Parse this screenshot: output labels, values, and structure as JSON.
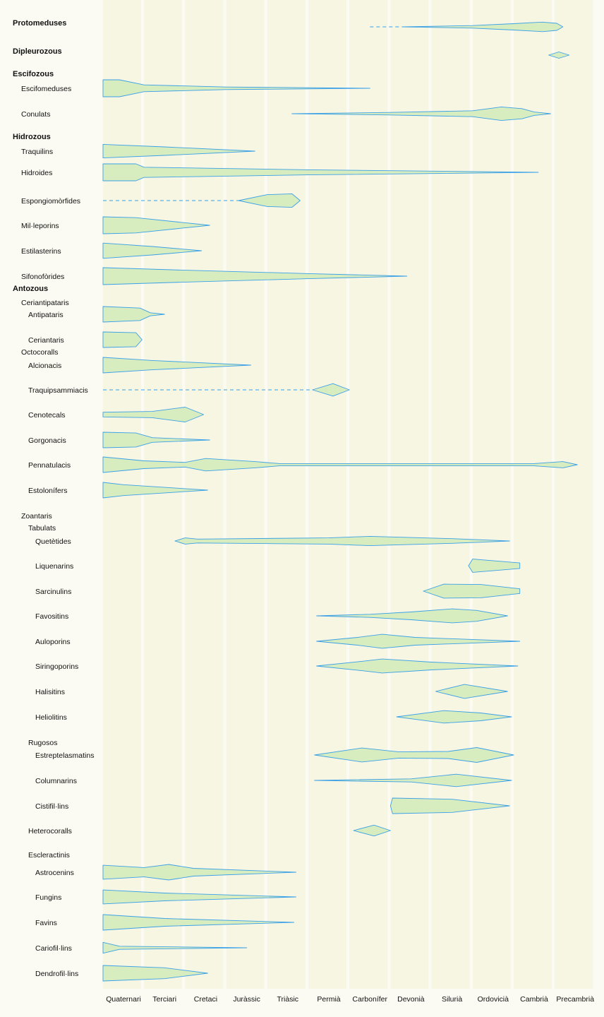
{
  "chart_data": {
    "type": "range-spindle",
    "periods": [
      "Quaternari",
      "Terciari",
      "Cretaci",
      "Juràssic",
      "Triàsic",
      "Permià",
      "Carbonífer",
      "Devonià",
      "Silurià",
      "Ordovicià",
      "Cambrià",
      "Precambrià"
    ],
    "colors": {
      "fill": "#d8edbf",
      "stroke": "#3aa0e8",
      "band": "#f6f6e2",
      "gap": "#fdfdf8"
    },
    "rows": [
      {
        "label": "Protomeduses",
        "level": 0,
        "start": 7.3,
        "end": 11.2,
        "dash_from": 6.5,
        "profile": [
          [
            7.3,
            0
          ],
          [
            9.0,
            0.2
          ],
          [
            10.0,
            0.5
          ],
          [
            10.7,
            0.75
          ],
          [
            11.05,
            0.55
          ],
          [
            11.2,
            0
          ]
        ]
      },
      {
        "label": "Dipleurozous",
        "level": 0,
        "start": 10.85,
        "end": 11.35,
        "profile": [
          [
            10.85,
            0
          ],
          [
            11.1,
            0.5
          ],
          [
            11.35,
            0
          ]
        ]
      },
      {
        "label": "Escifozous",
        "level": 0
      },
      {
        "label": "Escifomeduses",
        "level": 1,
        "start": 0,
        "end": 6.5,
        "profile": [
          [
            0,
            1
          ],
          [
            0.4,
            1
          ],
          [
            1,
            0.4
          ],
          [
            3,
            0.15
          ],
          [
            6.5,
            0
          ]
        ]
      },
      {
        "label": "Conulats",
        "level": 1,
        "start": 4.6,
        "end": 10.9,
        "profile": [
          [
            4.6,
            0
          ],
          [
            7,
            0.15
          ],
          [
            9,
            0.35
          ],
          [
            9.7,
            0.8
          ],
          [
            10.2,
            0.6
          ],
          [
            10.5,
            0.2
          ],
          [
            10.9,
            0
          ]
        ]
      },
      {
        "label": "Hidrozous",
        "level": 0
      },
      {
        "label": "Traquilins",
        "level": 1,
        "start": 0,
        "end": 3.7,
        "profile": [
          [
            0,
            0.8
          ],
          [
            1.5,
            0.5
          ],
          [
            3.7,
            0
          ]
        ]
      },
      {
        "label": "Hidroides",
        "level": 1,
        "start": 0,
        "end": 10.6,
        "profile": [
          [
            0,
            1
          ],
          [
            0.8,
            1
          ],
          [
            1,
            0.6
          ],
          [
            5,
            0.3
          ],
          [
            10.6,
            0
          ]
        ]
      },
      {
        "label": "Espongiomòrfides",
        "level": 1,
        "start": 3.3,
        "end": 4.8,
        "dash_from": 0,
        "profile": [
          [
            3.3,
            0
          ],
          [
            4.0,
            0.7
          ],
          [
            4.6,
            0.8
          ],
          [
            4.8,
            0
          ]
        ]
      },
      {
        "label": "Mil·leporins",
        "level": 1,
        "start": 0,
        "end": 2.6,
        "profile": [
          [
            0,
            1
          ],
          [
            0.8,
            0.9
          ],
          [
            2.6,
            0
          ]
        ]
      },
      {
        "label": "Estilasterins",
        "level": 1,
        "start": 0,
        "end": 2.4,
        "profile": [
          [
            0,
            0.9
          ],
          [
            1.2,
            0.5
          ],
          [
            2.4,
            0
          ]
        ]
      },
      {
        "label": "Sifonofòrides",
        "level": 1,
        "start": 0,
        "end": 7.4,
        "profile": [
          [
            0,
            1
          ],
          [
            2,
            0.7
          ],
          [
            5,
            0.3
          ],
          [
            7.4,
            0
          ]
        ]
      },
      {
        "label": "Antozous",
        "level": 0
      },
      {
        "label": "Ceriantipataris",
        "level": 1
      },
      {
        "label": "Antipataris",
        "level": 2,
        "start": 0,
        "end": 1.5,
        "profile": [
          [
            0,
            1
          ],
          [
            0.9,
            0.8
          ],
          [
            1.15,
            0.2
          ],
          [
            1.5,
            0
          ]
        ]
      },
      {
        "label": "Ceriantaris",
        "level": 2,
        "start": 0,
        "end": 0.95,
        "profile": [
          [
            0,
            1
          ],
          [
            0.8,
            0.9
          ],
          [
            0.95,
            0
          ]
        ]
      },
      {
        "label": "Octocoralls",
        "level": 1
      },
      {
        "label": "Alcionacis",
        "level": 2,
        "start": 0,
        "end": 3.6,
        "profile": [
          [
            0,
            1
          ],
          [
            1.2,
            0.6
          ],
          [
            3.6,
            0
          ]
        ]
      },
      {
        "label": "Traquipsammiacis",
        "level": 2,
        "start": 5.1,
        "end": 6.0,
        "dash_from": 0,
        "profile": [
          [
            5.1,
            0
          ],
          [
            5.6,
            0.8
          ],
          [
            6.0,
            0
          ]
        ]
      },
      {
        "label": "Cenotecals",
        "level": 2,
        "start": 0,
        "end": 2.45,
        "profile": [
          [
            0,
            0.3
          ],
          [
            1.2,
            0.4
          ],
          [
            2.0,
            0.95
          ],
          [
            2.45,
            0
          ]
        ]
      },
      {
        "label": "Gorgonacis",
        "level": 2,
        "start": 0,
        "end": 2.6,
        "profile": [
          [
            0,
            1
          ],
          [
            0.8,
            0.9
          ],
          [
            1.2,
            0.3
          ],
          [
            2.6,
            0
          ]
        ]
      },
      {
        "label": "Pennatulacis",
        "level": 2,
        "start": 0,
        "end": 11.55,
        "profile": [
          [
            0,
            1
          ],
          [
            1,
            0.5
          ],
          [
            2,
            0.3
          ],
          [
            2.5,
            0.8
          ],
          [
            3.7,
            0.4
          ],
          [
            4.3,
            0.15
          ],
          [
            10.5,
            0.15
          ],
          [
            11.2,
            0.4
          ],
          [
            11.55,
            0
          ]
        ]
      },
      {
        "label": "Estolonífers",
        "level": 2,
        "start": 0,
        "end": 2.55,
        "profile": [
          [
            0,
            1
          ],
          [
            0.5,
            0.7
          ],
          [
            2.55,
            0
          ]
        ]
      },
      {
        "label": "Zoantaris",
        "level": 1
      },
      {
        "label": "Tabulats",
        "level": 2
      },
      {
        "label": "Quetètides",
        "level": 3,
        "start": 1.75,
        "end": 9.9,
        "profile": [
          [
            1.75,
            0
          ],
          [
            2.0,
            0.4
          ],
          [
            2.3,
            0.25
          ],
          [
            5.5,
            0.4
          ],
          [
            6.5,
            0.6
          ],
          [
            8.5,
            0.3
          ],
          [
            9.9,
            0
          ]
        ]
      },
      {
        "label": "Liquenarins",
        "level": 3,
        "start": 8.9,
        "end": 10.15,
        "profile": [
          [
            8.9,
            0
          ],
          [
            9.0,
            0.85
          ],
          [
            10.15,
            0.35
          ],
          [
            10.15,
            0
          ]
        ]
      },
      {
        "label": "Sarcinulins",
        "level": 3,
        "start": 7.8,
        "end": 10.15,
        "profile": [
          [
            7.8,
            0
          ],
          [
            8.3,
            0.9
          ],
          [
            9.2,
            0.85
          ],
          [
            10.15,
            0.3
          ],
          [
            10.15,
            0
          ]
        ]
      },
      {
        "label": "Favositins",
        "level": 3,
        "start": 5.2,
        "end": 9.85,
        "profile": [
          [
            5.2,
            0
          ],
          [
            6.5,
            0.2
          ],
          [
            7.5,
            0.5
          ],
          [
            8.5,
            0.9
          ],
          [
            9.1,
            0.7
          ],
          [
            9.85,
            0
          ]
        ]
      },
      {
        "label": "Auloporins",
        "level": 3,
        "start": 5.2,
        "end": 10.15,
        "profile": [
          [
            5.2,
            0
          ],
          [
            6.2,
            0.5
          ],
          [
            6.8,
            0.9
          ],
          [
            7.6,
            0.5
          ],
          [
            10.15,
            0
          ]
        ]
      },
      {
        "label": "Siringoporins",
        "level": 3,
        "start": 5.2,
        "end": 10.1,
        "profile": [
          [
            5.2,
            0
          ],
          [
            6.3,
            0.6
          ],
          [
            6.8,
            0.9
          ],
          [
            8.0,
            0.5
          ],
          [
            10.1,
            0
          ]
        ]
      },
      {
        "label": "Halisitins",
        "level": 3,
        "start": 8.1,
        "end": 9.85,
        "profile": [
          [
            8.1,
            0
          ],
          [
            8.8,
            0.9
          ],
          [
            9.85,
            0
          ]
        ]
      },
      {
        "label": "Heliolitins",
        "level": 3,
        "start": 7.15,
        "end": 9.95,
        "profile": [
          [
            7.15,
            0
          ],
          [
            8.3,
            0.8
          ],
          [
            9.2,
            0.5
          ],
          [
            9.95,
            0
          ]
        ]
      },
      {
        "label": "Rugosos",
        "level": 2
      },
      {
        "label": "Estreptelasmatins",
        "level": 3,
        "start": 5.15,
        "end": 10.0,
        "profile": [
          [
            5.15,
            0
          ],
          [
            6.3,
            0.9
          ],
          [
            7.2,
            0.4
          ],
          [
            8.4,
            0.45
          ],
          [
            9.1,
            0.95
          ],
          [
            10.0,
            0
          ]
        ]
      },
      {
        "label": "Columnarins",
        "level": 3,
        "start": 5.15,
        "end": 9.95,
        "profile": [
          [
            5.15,
            0
          ],
          [
            7.5,
            0.2
          ],
          [
            8.6,
            0.8
          ],
          [
            9.95,
            0
          ]
        ]
      },
      {
        "label": "Cistifil·lins",
        "level": 3,
        "start": 7.0,
        "end": 9.9,
        "profile": [
          [
            7.0,
            0
          ],
          [
            7.05,
            1
          ],
          [
            8.5,
            0.85
          ],
          [
            9.9,
            0
          ]
        ]
      },
      {
        "label": "Heterocoralls",
        "level": 2,
        "start": 6.1,
        "end": 7.0,
        "profile": [
          [
            6.1,
            0
          ],
          [
            6.6,
            0.7
          ],
          [
            7.0,
            0
          ]
        ]
      },
      {
        "label": "Escleractinis",
        "level": 2
      },
      {
        "label": "Astrocenins",
        "level": 3,
        "start": 0,
        "end": 4.7,
        "profile": [
          [
            0,
            0.9
          ],
          [
            1.0,
            0.6
          ],
          [
            1.6,
            1
          ],
          [
            2.2,
            0.5
          ],
          [
            4.7,
            0
          ]
        ]
      },
      {
        "label": "Fungins",
        "level": 3,
        "start": 0,
        "end": 4.7,
        "profile": [
          [
            0,
            0.9
          ],
          [
            1.5,
            0.5
          ],
          [
            4.7,
            0
          ]
        ]
      },
      {
        "label": "Favins",
        "level": 3,
        "start": 0,
        "end": 4.65,
        "profile": [
          [
            0,
            1
          ],
          [
            1.5,
            0.5
          ],
          [
            4.65,
            0
          ]
        ]
      },
      {
        "label": "Cariofil·lins",
        "level": 3,
        "start": 0,
        "end": 3.5,
        "profile": [
          [
            0,
            0.7
          ],
          [
            0.4,
            0.2
          ],
          [
            3.5,
            0
          ]
        ]
      },
      {
        "label": "Dendrofil·lins",
        "level": 3,
        "start": 0,
        "end": 2.55,
        "profile": [
          [
            0,
            1
          ],
          [
            1.5,
            0.7
          ],
          [
            2.55,
            0
          ]
        ]
      }
    ]
  }
}
